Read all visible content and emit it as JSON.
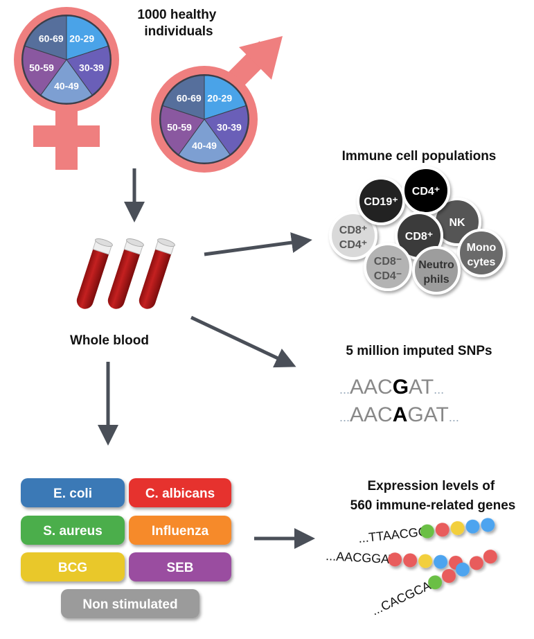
{
  "title": "1000 healthy individuals",
  "title_lines": [
    "1000 healthy",
    "individuals"
  ],
  "age_groups": [
    "20-29",
    "30-39",
    "40-49",
    "50-59",
    "60-69"
  ],
  "age_colors": [
    "#4aa3e8",
    "#6a5fb8",
    "#7d9fd2",
    "#8a58a0",
    "#566f9c"
  ],
  "sex_symbol_color": "#ef7f7f",
  "whole_blood": "Whole blood",
  "immune": {
    "title": "Immune cell populations",
    "cells": [
      {
        "l1": "CD8⁺",
        "l2": "CD4⁺",
        "color": "#d9d9d9",
        "text": "#555"
      },
      {
        "l1": "CD19⁺",
        "l2": "",
        "color": "#222222",
        "text": "#fff"
      },
      {
        "l1": "NK",
        "l2": "",
        "color": "#555555",
        "text": "#fff"
      },
      {
        "l1": "CD4⁺",
        "l2": "",
        "color": "#000000",
        "text": "#fff"
      },
      {
        "l1": "CD8⁺",
        "l2": "",
        "color": "#3a3a3a",
        "text": "#fff"
      },
      {
        "l1": "CD8⁻",
        "l2": "CD4⁻",
        "color": "#b3b3b3",
        "text": "#555"
      },
      {
        "l1": "Mono",
        "l2": "cytes",
        "color": "#6b6b6b",
        "text": "#fff"
      },
      {
        "l1": "Neutro",
        "l2": "phils",
        "color": "#9d9d9d",
        "text": "#333"
      }
    ]
  },
  "snps": {
    "title": "5 million imputed SNPs",
    "seq1": {
      "pre": "AACG",
      "pre_plain": "AAC",
      "variant": "G",
      "post": "AT"
    },
    "seq2": {
      "pre_plain": "AAC",
      "variant": "A",
      "post": "GAT"
    },
    "ellipsis": "..."
  },
  "expression": {
    "title_lines": [
      "Expression levels of",
      "560 immune-related genes"
    ],
    "strands": [
      {
        "seq": "...TTAACGG",
        "beads": [
          "#6bbf45",
          "#e85c5c",
          "#f2cf3c",
          "#4ea4ef",
          "#4ea4ef"
        ]
      },
      {
        "seq": "...AACGGAT",
        "beads": [
          "#e85c5c",
          "#e85c5c",
          "#f2cf3c",
          "#4ea4ef",
          "#e85c5c"
        ]
      },
      {
        "seq": "...CACGCAA",
        "beads": [
          "#6bbf45",
          "#e85c5c",
          "#4ea4ef",
          "#e85c5c",
          "#e85c5c"
        ]
      }
    ]
  },
  "stimuli": [
    {
      "label": "E. coli",
      "color": "#3a79b6"
    },
    {
      "label": "C. albicans",
      "color": "#e6302f"
    },
    {
      "label": "S. aureus",
      "color": "#4cae4c"
    },
    {
      "label": "Influenza",
      "color": "#f68a2b"
    },
    {
      "label": "BCG",
      "color": "#e9c82b"
    },
    {
      "label": "SEB",
      "color": "#9a4ea0"
    },
    {
      "label": "Non stimulated",
      "color": "#9b9b9b"
    }
  ]
}
